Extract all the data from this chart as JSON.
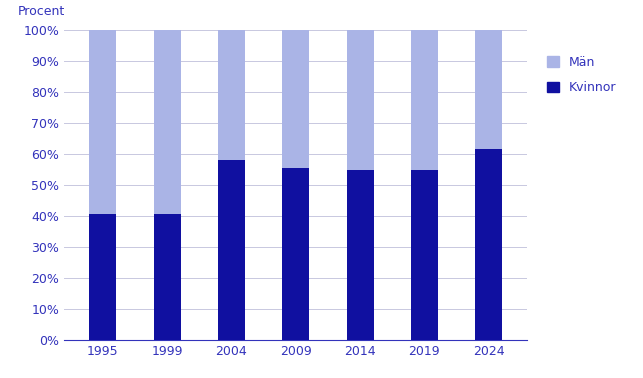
{
  "years": [
    "1995",
    "1999",
    "2004",
    "2009",
    "2014",
    "2019",
    "2024"
  ],
  "kvinnor": [
    40.74,
    40.74,
    58.06,
    55.56,
    55.0,
    55.0,
    61.54
  ],
  "man": [
    59.26,
    59.26,
    41.94,
    44.44,
    45.0,
    45.0,
    38.46
  ],
  "color_kvinnor": "#1010a0",
  "color_man": "#aab4e6",
  "ylabel_text": "Procent",
  "ytick_labels": [
    "0%",
    "10%",
    "20%",
    "30%",
    "40%",
    "50%",
    "60%",
    "70%",
    "80%",
    "90%",
    "100%"
  ],
  "ytick_values": [
    0,
    10,
    20,
    30,
    40,
    50,
    60,
    70,
    80,
    90,
    100
  ],
  "legend_man": "Män",
  "legend_kvinnor": "Kvinnor",
  "grid_color": "#c8c8e0",
  "axis_color": "#3333bb",
  "background_color": "#ffffff",
  "bar_width": 0.42,
  "text_color": "#3333bb"
}
